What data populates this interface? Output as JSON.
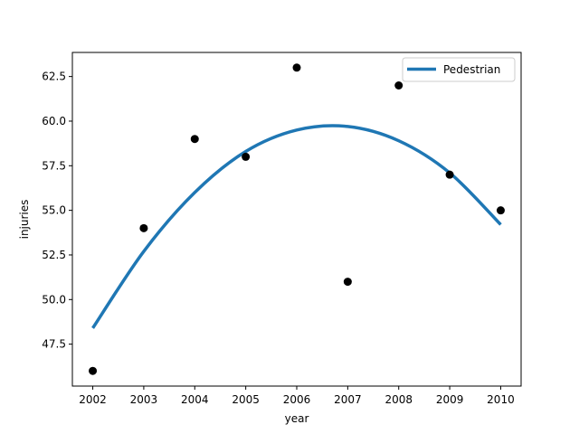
{
  "chart_data": {
    "type": "scatter",
    "title": "",
    "xlabel": "year",
    "ylabel": "injuries",
    "xlim": [
      2001.6,
      2010.4
    ],
    "ylim": [
      45.15,
      63.85
    ],
    "xticks": [
      2002,
      2003,
      2004,
      2005,
      2006,
      2007,
      2008,
      2009,
      2010
    ],
    "yticks": [
      47.5,
      50.0,
      52.5,
      55.0,
      57.5,
      60.0,
      62.5
    ],
    "grid": false,
    "legend_position": "top-right",
    "points": {
      "x": [
        2002,
        2003,
        2004,
        2005,
        2006,
        2007,
        2008,
        2009,
        2010
      ],
      "y": [
        46,
        54,
        59,
        58,
        63,
        51,
        62,
        57,
        55
      ],
      "color": "#000000"
    },
    "series": [
      {
        "name": "Pedestrian",
        "kind": "line",
        "color": "#1f77b4",
        "x": [
          2002,
          2003,
          2004,
          2005,
          2006,
          2007,
          2008,
          2009,
          2010
        ],
        "y": [
          48.4,
          52.7,
          56.0,
          58.3,
          59.5,
          59.7,
          58.9,
          57.1,
          54.2
        ]
      }
    ]
  }
}
